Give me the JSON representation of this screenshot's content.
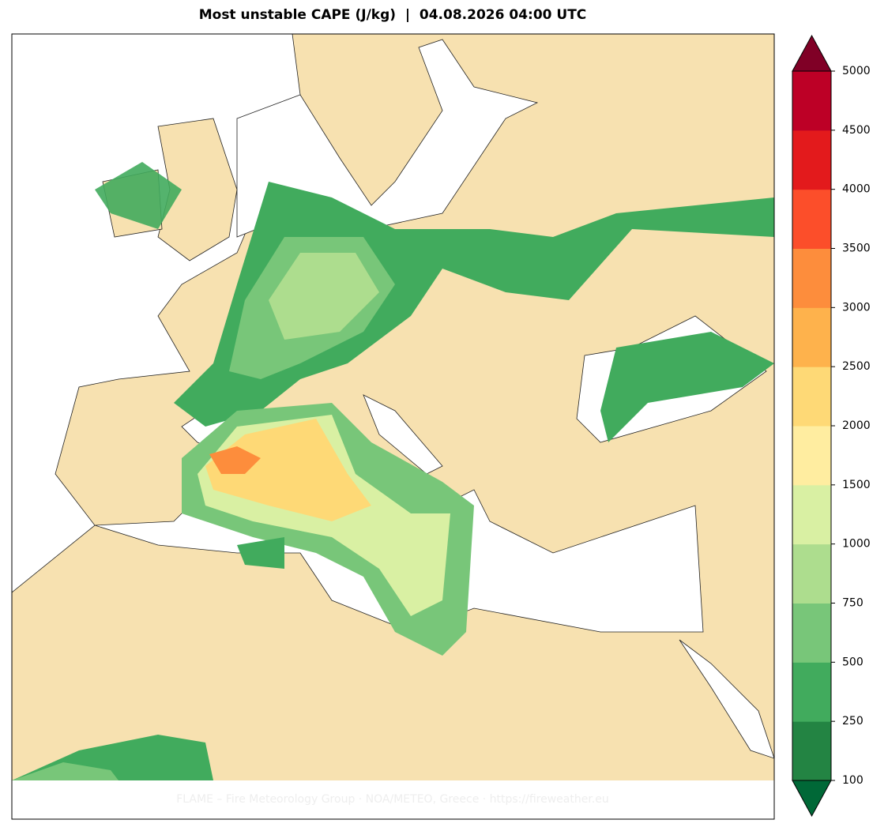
{
  "title": "Most unstable CAPE (J/kg)  |  04.08.2026 04:00 UTC",
  "colorbar": {
    "ticks": [
      100,
      250,
      500,
      750,
      1000,
      1500,
      2000,
      2500,
      3000,
      3500,
      4000,
      4500,
      5000
    ],
    "colors": [
      "#238443",
      "#41ab5d",
      "#78c679",
      "#addd8e",
      "#d9f0a3",
      "#ffeda0",
      "#fed976",
      "#feb24c",
      "#fd8d3c",
      "#fc4e2a",
      "#e31a1c",
      "#bd0026"
    ],
    "under_color": "#006837",
    "over_color": "#800026"
  },
  "footer": "FLAME – Fire Meteorology Group · NOA/METEO, Greece · https://fireweather.eu"
}
